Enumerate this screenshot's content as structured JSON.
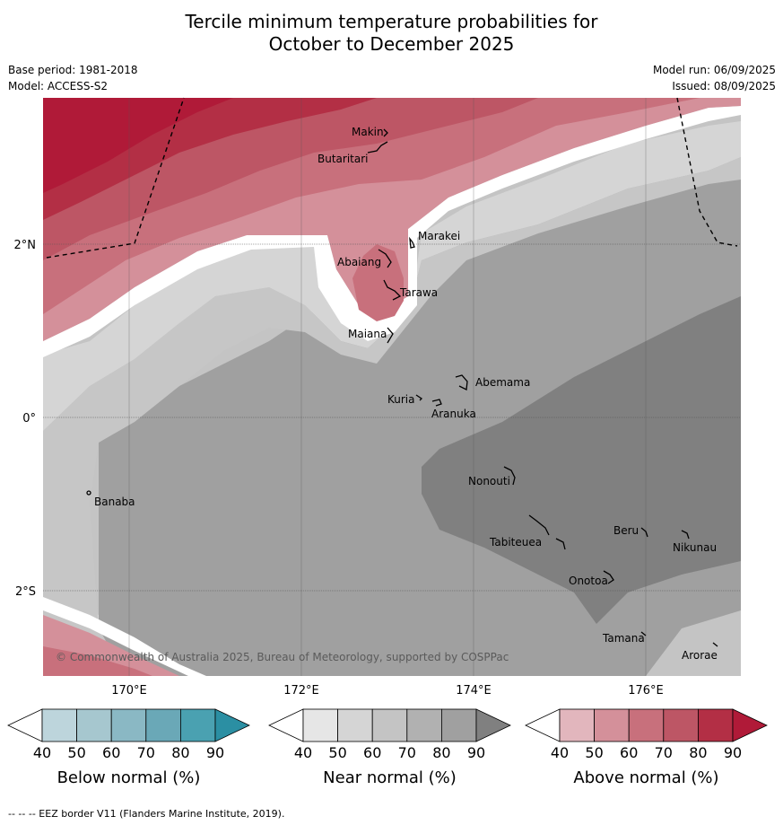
{
  "title_line1": "Tercile minimum temperature probabilities for",
  "title_line2": "October to December 2025",
  "base_period": "Base period: 1981-2018",
  "model": "Model: ACCESS-S2",
  "model_run": "Model run: 06/09/2025",
  "issued": "Issued: 08/09/2025",
  "copyright": "© Commonwealth of Australia 2025, Bureau of Meteorology, supported by COSPPac",
  "lat_labels": [
    "2°N",
    "0°",
    "2°S"
  ],
  "lon_labels": [
    "170°E",
    "172°E",
    "174°E",
    "176°E"
  ],
  "places": [
    "Makin",
    "Butaritari",
    "Marakei",
    "Abaiang",
    "Tarawa",
    "Maiana",
    "Abemama",
    "Kuria",
    "Aranuka",
    "Banaba",
    "Nonouti",
    "Beru",
    "Tabiteuea",
    "Nikunau",
    "Onotoa",
    "Tamana",
    "Arorae"
  ],
  "legends": [
    {
      "title": "Below normal (%)",
      "ticks": [
        "40",
        "50",
        "60",
        "70",
        "80",
        "90"
      ],
      "colors": [
        "#ffffff",
        "#bdd5dc",
        "#a6c7cf",
        "#8ab8c4",
        "#6aa8b7",
        "#4aa1b1",
        "#2b8fa3"
      ]
    },
    {
      "title": "Near normal (%)",
      "ticks": [
        "40",
        "50",
        "60",
        "70",
        "80",
        "90"
      ],
      "colors": [
        "#ffffff",
        "#e6e6e6",
        "#d5d5d5",
        "#c4c4c4",
        "#b1b1b1",
        "#a0a0a0",
        "#808080"
      ]
    },
    {
      "title": "Above normal (%)",
      "ticks": [
        "40",
        "50",
        "60",
        "70",
        "80",
        "90"
      ],
      "colors": [
        "#ffffff",
        "#e2b6bd",
        "#d4909a",
        "#c8707c",
        "#bd5665",
        "#b32f45",
        "#b01a38"
      ]
    }
  ],
  "footer": "--  --  -- EEZ border V11 (Flanders Marine Institute, 2019)."
}
